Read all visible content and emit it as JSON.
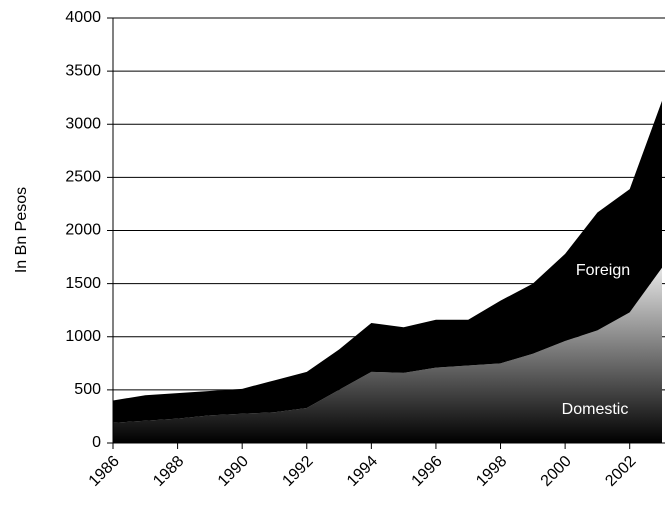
{
  "chart_data": {
    "type": "stacked-area",
    "y_label": "In Bn Pesos",
    "x": [
      1986,
      1987,
      1988,
      1989,
      1990,
      1991,
      1992,
      1993,
      1994,
      1995,
      1996,
      1997,
      1998,
      1999,
      2000,
      2001,
      2002,
      2003
    ],
    "series": [
      {
        "name": "Domestic",
        "color": "#e6e6e6",
        "values": [
          190,
          210,
          230,
          260,
          275,
          290,
          330,
          500,
          670,
          660,
          710,
          730,
          750,
          840,
          960,
          1060,
          1230,
          1650
        ]
      },
      {
        "name": "Foreign",
        "color": "#000000",
        "values": [
          210,
          240,
          240,
          230,
          235,
          300,
          340,
          380,
          460,
          430,
          450,
          430,
          590,
          660,
          820,
          1110,
          1160,
          1570
        ]
      }
    ],
    "xlim": [
      1986,
      2003
    ],
    "xticks": [
      1986,
      1988,
      1990,
      1992,
      1994,
      1996,
      1998,
      2000,
      2002
    ],
    "ylim": [
      0,
      4000
    ],
    "yticks": [
      0,
      500,
      1000,
      1500,
      2000,
      2500,
      3000,
      3500,
      4000
    ],
    "grid": true
  }
}
